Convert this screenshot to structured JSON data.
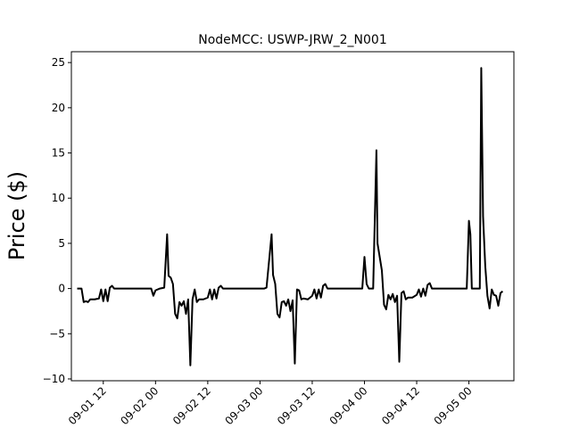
{
  "chart_data": {
    "type": "line",
    "title": "NodeMCC: USWP-JRW_2_N001",
    "xlabel": "",
    "ylabel": "Price ($)",
    "x_unit": "hours",
    "x_range": [
      "2023-09-01 04:40",
      "2023-09-05 10:20"
    ],
    "ylim": [
      -10.2,
      26.2
    ],
    "grid": false,
    "y_ticks": [
      -10,
      -5,
      0,
      5,
      10,
      15,
      20,
      25
    ],
    "x_ticks": [
      {
        "label": "09-01 12",
        "t": "2023-09-01 12:00"
      },
      {
        "label": "09-02 00",
        "t": "2023-09-02 00:00"
      },
      {
        "label": "09-02 12",
        "t": "2023-09-02 12:00"
      },
      {
        "label": "09-03 00",
        "t": "2023-09-03 00:00"
      },
      {
        "label": "09-03 12",
        "t": "2023-09-03 12:00"
      },
      {
        "label": "09-04 00",
        "t": "2023-09-04 00:00"
      },
      {
        "label": "09-04 12",
        "t": "2023-09-04 12:00"
      },
      {
        "label": "09-05 00",
        "t": "2023-09-05 00:00"
      }
    ],
    "series": [
      {
        "name": "",
        "color": "#000000",
        "points": [
          [
            "2023-09-01 06:00",
            0
          ],
          [
            "2023-09-01 07:00",
            0
          ],
          [
            "2023-09-01 07:30",
            -1.5
          ],
          [
            "2023-09-01 08:00",
            -1.4
          ],
          [
            "2023-09-01 08:30",
            -1.5
          ],
          [
            "2023-09-01 09:00",
            -1.2
          ],
          [
            "2023-09-01 10:00",
            -1.2
          ],
          [
            "2023-09-01 11:00",
            -1.1
          ],
          [
            "2023-09-01 11:30",
            -0.1
          ],
          [
            "2023-09-01 12:00",
            -1.4
          ],
          [
            "2023-09-01 12:30",
            -0.1
          ],
          [
            "2023-09-01 13:00",
            -1.4
          ],
          [
            "2023-09-01 13:30",
            0.1
          ],
          [
            "2023-09-01 14:00",
            0.3
          ],
          [
            "2023-09-01 14:30",
            0
          ],
          [
            "2023-09-01 23:00",
            0
          ],
          [
            "2023-09-01 23:30",
            -0.8
          ],
          [
            "2023-09-02 00:00",
            -0.2
          ],
          [
            "2023-09-02 01:00",
            0
          ],
          [
            "2023-09-02 02:00",
            0.1
          ],
          [
            "2023-09-02 02:40",
            6.0
          ],
          [
            "2023-09-02 03:00",
            1.4
          ],
          [
            "2023-09-02 03:30",
            1.2
          ],
          [
            "2023-09-02 04:00",
            0.5
          ],
          [
            "2023-09-02 04:30",
            -2.8
          ],
          [
            "2023-09-02 05:00",
            -3.3
          ],
          [
            "2023-09-02 05:30",
            -1.5
          ],
          [
            "2023-09-02 06:00",
            -1.9
          ],
          [
            "2023-09-02 06:30",
            -1.4
          ],
          [
            "2023-09-02 07:00",
            -2.8
          ],
          [
            "2023-09-02 07:30",
            -1.2
          ],
          [
            "2023-09-02 08:00",
            -8.5
          ],
          [
            "2023-09-02 08:30",
            -1.2
          ],
          [
            "2023-09-02 09:00",
            -0.1
          ],
          [
            "2023-09-02 09:30",
            -1.5
          ],
          [
            "2023-09-02 10:00",
            -1.2
          ],
          [
            "2023-09-02 11:00",
            -1.2
          ],
          [
            "2023-09-02 12:00",
            -1.0
          ],
          [
            "2023-09-02 12:30",
            -0.1
          ],
          [
            "2023-09-02 13:00",
            -1.2
          ],
          [
            "2023-09-02 13:30",
            -0.1
          ],
          [
            "2023-09-02 14:00",
            -1.1
          ],
          [
            "2023-09-02 14:30",
            0.1
          ],
          [
            "2023-09-02 15:00",
            0.3
          ],
          [
            "2023-09-02 15:30",
            0
          ],
          [
            "2023-09-03 01:00",
            0
          ],
          [
            "2023-09-03 01:30",
            0.1
          ],
          [
            "2023-09-03 02:40",
            6.0
          ],
          [
            "2023-09-03 03:00",
            1.5
          ],
          [
            "2023-09-03 03:30",
            0.5
          ],
          [
            "2023-09-03 04:00",
            -2.8
          ],
          [
            "2023-09-03 04:30",
            -3.2
          ],
          [
            "2023-09-03 05:00",
            -1.5
          ],
          [
            "2023-09-03 05:30",
            -1.4
          ],
          [
            "2023-09-03 06:00",
            -1.9
          ],
          [
            "2023-09-03 06:30",
            -1.2
          ],
          [
            "2023-09-03 07:00",
            -2.5
          ],
          [
            "2023-09-03 07:30",
            -1.3
          ],
          [
            "2023-09-03 08:00",
            -8.3
          ],
          [
            "2023-09-03 08:30",
            -0.1
          ],
          [
            "2023-09-03 09:00",
            -0.2
          ],
          [
            "2023-09-03 09:30",
            -1.2
          ],
          [
            "2023-09-03 10:00",
            -1.1
          ],
          [
            "2023-09-03 11:00",
            -1.2
          ],
          [
            "2023-09-03 12:00",
            -0.8
          ],
          [
            "2023-09-03 12:30",
            -0.1
          ],
          [
            "2023-09-03 13:00",
            -1.1
          ],
          [
            "2023-09-03 13:30",
            -0.1
          ],
          [
            "2023-09-03 14:00",
            -1.0
          ],
          [
            "2023-09-03 14:30",
            0.3
          ],
          [
            "2023-09-03 15:00",
            0.5
          ],
          [
            "2023-09-03 15:30",
            0
          ],
          [
            "2023-09-03 23:30",
            0
          ],
          [
            "2023-09-04 00:00",
            3.5
          ],
          [
            "2023-09-04 00:30",
            0.5
          ],
          [
            "2023-09-04 01:00",
            0
          ],
          [
            "2023-09-04 02:00",
            0
          ],
          [
            "2023-09-04 02:45",
            15.3
          ],
          [
            "2023-09-04 03:00",
            5.0
          ],
          [
            "2023-09-04 04:00",
            2.0
          ],
          [
            "2023-09-04 04:30",
            -1.8
          ],
          [
            "2023-09-04 05:00",
            -2.3
          ],
          [
            "2023-09-04 05:30",
            -0.7
          ],
          [
            "2023-09-04 06:00",
            -1.2
          ],
          [
            "2023-09-04 06:30",
            -0.6
          ],
          [
            "2023-09-04 07:00",
            -1.5
          ],
          [
            "2023-09-04 07:30",
            -0.8
          ],
          [
            "2023-09-04 08:00",
            -8.1
          ],
          [
            "2023-09-04 08:30",
            -0.5
          ],
          [
            "2023-09-04 09:00",
            -0.3
          ],
          [
            "2023-09-04 09:30",
            -1.2
          ],
          [
            "2023-09-04 10:00",
            -1.0
          ],
          [
            "2023-09-04 11:00",
            -1.0
          ],
          [
            "2023-09-04 12:00",
            -0.7
          ],
          [
            "2023-09-04 12:30",
            -0.1
          ],
          [
            "2023-09-04 13:00",
            -0.9
          ],
          [
            "2023-09-04 13:30",
            0
          ],
          [
            "2023-09-04 14:00",
            -0.8
          ],
          [
            "2023-09-04 14:30",
            0.4
          ],
          [
            "2023-09-04 15:00",
            0.6
          ],
          [
            "2023-09-04 15:30",
            0
          ],
          [
            "2023-09-04 23:30",
            0
          ],
          [
            "2023-09-05 00:00",
            7.5
          ],
          [
            "2023-09-05 00:20",
            6.0
          ],
          [
            "2023-09-05 00:40",
            0
          ],
          [
            "2023-09-05 01:30",
            0
          ],
          [
            "2023-09-05 02:30",
            0
          ],
          [
            "2023-09-05 02:50",
            24.4
          ],
          [
            "2023-09-05 03:15",
            8.0
          ],
          [
            "2023-09-05 03:45",
            2.5
          ],
          [
            "2023-09-05 04:15",
            -0.8
          ],
          [
            "2023-09-05 04:45",
            -2.2
          ],
          [
            "2023-09-05 05:15",
            -0.1
          ],
          [
            "2023-09-05 05:45",
            -0.7
          ],
          [
            "2023-09-05 06:15",
            -0.8
          ],
          [
            "2023-09-05 06:45",
            -1.9
          ],
          [
            "2023-09-05 07:15",
            -0.5
          ],
          [
            "2023-09-05 07:45",
            -0.3
          ]
        ]
      }
    ]
  }
}
